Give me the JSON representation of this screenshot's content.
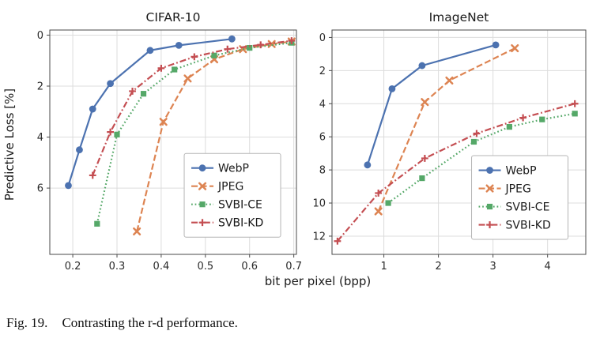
{
  "figure": {
    "caption_label": "Fig. 19.",
    "caption_text": "Contrasting the r-d performance.",
    "shared_xlabel": "bit per pixel (bpp)",
    "shared_ylabel": "Predictive Loss [%]"
  },
  "palette": {
    "webp": "#4C72B0",
    "jpeg": "#DD8452",
    "svbi_ce": "#55A868",
    "svbi_kd": "#C44E52"
  },
  "chart_data": [
    {
      "type": "line",
      "title": "CIFAR-10",
      "xlabel": "bit per pixel (bpp)",
      "ylabel": "Predictive Loss [%]",
      "y_inverted": true,
      "grid": true,
      "legend_position": "center right",
      "xlim": [
        0.148,
        0.706
      ],
      "ylim": [
        8.6,
        -0.2
      ],
      "xticks": [
        0.2,
        0.3,
        0.4,
        0.5,
        0.6,
        0.7
      ],
      "yticks": [
        0,
        2,
        4,
        6
      ],
      "series": [
        {
          "name": "WebP",
          "color": "#4C72B0",
          "line": "solid",
          "marker": "circle",
          "points": [
            [
              0.19,
              5.9
            ],
            [
              0.215,
              4.5
            ],
            [
              0.245,
              2.9
            ],
            [
              0.285,
              1.9
            ],
            [
              0.375,
              0.6
            ],
            [
              0.44,
              0.4
            ],
            [
              0.56,
              0.15
            ]
          ]
        },
        {
          "name": "JPEG",
          "color": "#DD8452",
          "line": "dashed",
          "marker": "x",
          "points": [
            [
              0.345,
              7.7
            ],
            [
              0.405,
              3.4
            ],
            [
              0.46,
              1.7
            ],
            [
              0.52,
              0.95
            ],
            [
              0.585,
              0.55
            ],
            [
              0.65,
              0.35
            ],
            [
              0.695,
              0.25
            ]
          ]
        },
        {
          "name": "SVBI-CE",
          "color": "#55A868",
          "line": "dotted",
          "marker": "square",
          "points": [
            [
              0.255,
              7.4
            ],
            [
              0.3,
              3.9
            ],
            [
              0.36,
              2.3
            ],
            [
              0.43,
              1.35
            ],
            [
              0.52,
              0.8
            ],
            [
              0.6,
              0.5
            ],
            [
              0.695,
              0.3
            ]
          ]
        },
        {
          "name": "SVBI-KD",
          "color": "#C44E52",
          "line": "dashdot",
          "marker": "plus",
          "points": [
            [
              0.245,
              5.5
            ],
            [
              0.285,
              3.8
            ],
            [
              0.335,
              2.2
            ],
            [
              0.4,
              1.3
            ],
            [
              0.475,
              0.85
            ],
            [
              0.55,
              0.55
            ],
            [
              0.625,
              0.38
            ],
            [
              0.695,
              0.22
            ]
          ]
        }
      ]
    },
    {
      "type": "line",
      "title": "ImageNet",
      "xlabel": "bit per pixel (bpp)",
      "ylabel": "Predictive Loss [%]",
      "y_inverted": true,
      "grid": true,
      "legend_position": "lower right",
      "xlim": [
        0.05,
        4.7
      ],
      "ylim": [
        13.1,
        -0.45
      ],
      "xticks": [
        1,
        2,
        3,
        4
      ],
      "yticks": [
        0,
        2,
        4,
        6,
        8,
        10,
        12
      ],
      "series": [
        {
          "name": "WebP",
          "color": "#4C72B0",
          "line": "solid",
          "marker": "circle",
          "points": [
            [
              0.7,
              7.7
            ],
            [
              1.15,
              3.1
            ],
            [
              1.7,
              1.7
            ],
            [
              3.05,
              0.45
            ]
          ]
        },
        {
          "name": "JPEG",
          "color": "#DD8452",
          "line": "dashed",
          "marker": "x",
          "points": [
            [
              0.9,
              10.5
            ],
            [
              1.75,
              3.9
            ],
            [
              2.2,
              2.6
            ],
            [
              3.4,
              0.65
            ]
          ]
        },
        {
          "name": "SVBI-CE",
          "color": "#55A868",
          "line": "dotted",
          "marker": "square",
          "points": [
            [
              1.08,
              10.0
            ],
            [
              1.7,
              8.5
            ],
            [
              2.65,
              6.3
            ],
            [
              3.3,
              5.4
            ],
            [
              3.9,
              4.95
            ],
            [
              4.5,
              4.6
            ]
          ]
        },
        {
          "name": "SVBI-KD",
          "color": "#C44E52",
          "line": "dashdot",
          "marker": "plus",
          "points": [
            [
              0.15,
              12.3
            ],
            [
              0.9,
              9.4
            ],
            [
              1.75,
              7.3
            ],
            [
              2.7,
              5.8
            ],
            [
              3.55,
              4.85
            ],
            [
              4.5,
              4.0
            ]
          ]
        }
      ]
    }
  ]
}
